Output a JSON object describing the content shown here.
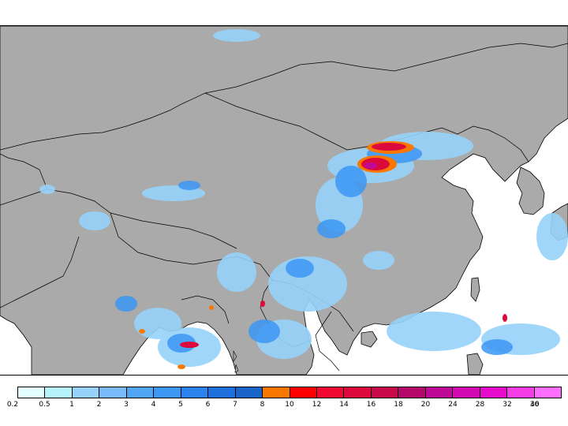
{
  "map": {
    "land_color": "#aaaaaa",
    "sea_color": "#ffffff",
    "border_color": "#000000"
  },
  "legend": {
    "colors": [
      "#e4ffff",
      "#b4f4fa",
      "#96d2fa",
      "#78b9fa",
      "#50a5f5",
      "#3c97f5",
      "#2c83f0",
      "#1e6edc",
      "#1964c8",
      "#fa7800",
      "#ff0000",
      "#f00a32",
      "#dc0a3c",
      "#c80a4b",
      "#b4096b",
      "#be0a96",
      "#d20ab4",
      "#e60acd",
      "#f53ce6",
      "#ff6eff"
    ],
    "labels": [
      "0.2",
      "0.5",
      "1",
      "2",
      "3",
      "4",
      "5",
      "6",
      "7",
      "8",
      "10",
      "12",
      "14",
      "16",
      "18",
      "20",
      "24",
      "28",
      "32",
      "36",
      "40"
    ]
  }
}
